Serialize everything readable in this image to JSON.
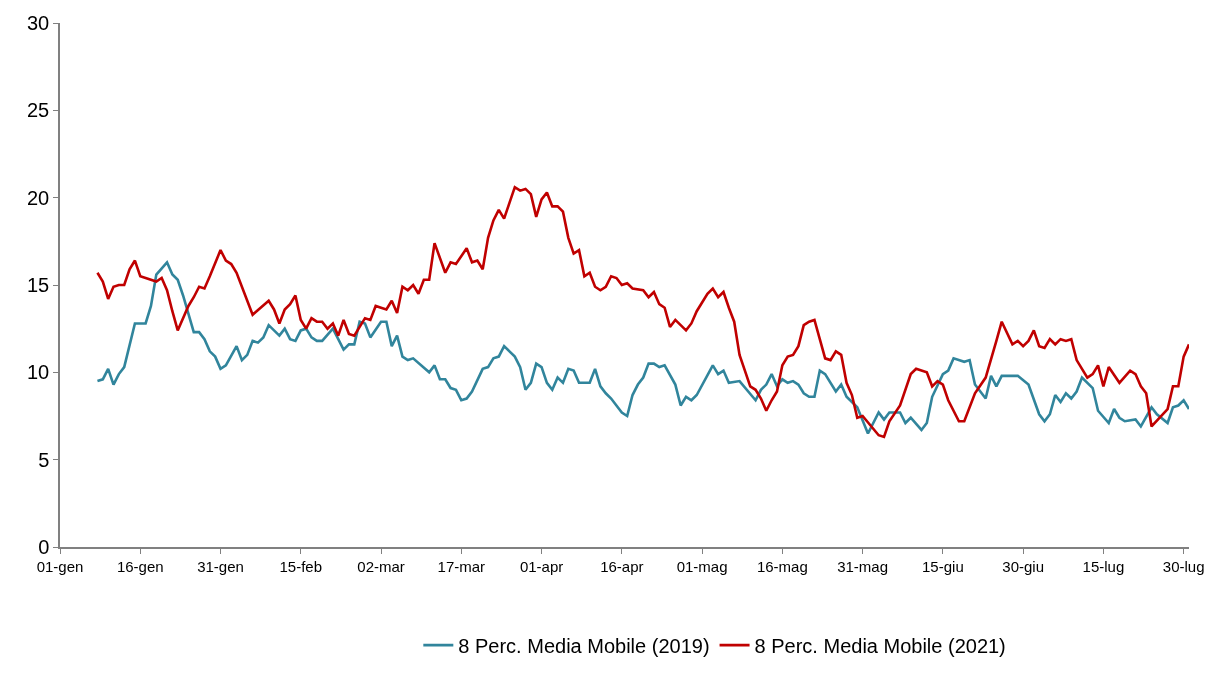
{
  "chart_data": {
    "type": "line",
    "xlim": [
      "--01-01",
      "--07-31"
    ],
    "ylim": [
      0,
      30
    ],
    "yticks": [
      0,
      5,
      10,
      15,
      20,
      25,
      30
    ],
    "xticks": [
      {
        "value": "--01-01",
        "label": "01-gen"
      },
      {
        "value": "--01-16",
        "label": "16-gen"
      },
      {
        "value": "--01-31",
        "label": "31-gen"
      },
      {
        "value": "--02-15",
        "label": "15-feb"
      },
      {
        "value": "--03-02",
        "label": "02-mar"
      },
      {
        "value": "--03-17",
        "label": "17-mar"
      },
      {
        "value": "--04-01",
        "label": "01-apr"
      },
      {
        "value": "--04-16",
        "label": "16-apr"
      },
      {
        "value": "--05-01",
        "label": "01-mag"
      },
      {
        "value": "--05-16",
        "label": "16-mag"
      },
      {
        "value": "--05-31",
        "label": "31-mag"
      },
      {
        "value": "--06-15",
        "label": "15-giu"
      },
      {
        "value": "--06-30",
        "label": "30-giu"
      },
      {
        "value": "--07-15",
        "label": "15-lug"
      },
      {
        "value": "--07-30",
        "label": "30-lug"
      }
    ],
    "grid": false,
    "legend": "bottom",
    "marker": "none",
    "line_style": "solid",
    "series": [
      {
        "name": "8 Perc. Media Mobile (2019)",
        "color": "#31859c",
        "x": [
          "--01-08",
          "--01-09",
          "--01-10",
          "--01-11",
          "--01-12",
          "--01-13",
          "--01-15",
          "--01-17",
          "--01-18",
          "--01-19",
          "--01-21",
          "--01-22",
          "--01-23",
          "--01-24",
          "--01-26",
          "--01-27",
          "--01-28",
          "--01-29",
          "--01-30",
          "--01-31",
          "--02-01",
          "--02-03",
          "--02-04",
          "--02-05",
          "--02-06",
          "--02-07",
          "--02-08",
          "--02-09",
          "--02-11",
          "--02-12",
          "--02-13",
          "--02-14",
          "--02-15",
          "--02-16",
          "--02-17",
          "--02-18",
          "--02-19",
          "--02-21",
          "--02-23",
          "--02-24",
          "--02-25",
          "--02-26",
          "--02-27",
          "--02-28",
          "--03-02",
          "--03-03",
          "--03-04",
          "--03-05",
          "--03-06",
          "--03-07",
          "--03-08",
          "--03-11",
          "--03-12",
          "--03-13",
          "--03-14",
          "--03-15",
          "--03-16",
          "--03-17",
          "--03-18",
          "--03-19",
          "--03-21",
          "--03-22",
          "--03-23",
          "--03-24",
          "--03-25",
          "--03-26",
          "--03-27",
          "--03-28",
          "--03-29",
          "--03-30",
          "--03-31",
          "--04-01",
          "--04-02",
          "--04-03",
          "--04-04",
          "--04-05",
          "--04-06",
          "--04-07",
          "--04-08",
          "--04-10",
          "--04-11",
          "--04-12",
          "--04-13",
          "--04-14",
          "--04-16",
          "--04-17",
          "--04-18",
          "--04-19",
          "--04-20",
          "--04-21",
          "--04-22",
          "--04-23",
          "--04-24",
          "--04-26",
          "--04-27",
          "--04-28",
          "--04-29",
          "--04-30",
          "--05-03",
          "--05-04",
          "--05-05",
          "--05-06",
          "--05-08",
          "--05-11",
          "--05-12",
          "--05-13",
          "--05-14",
          "--05-15",
          "--05-16",
          "--05-17",
          "--05-18",
          "--05-19",
          "--05-20",
          "--05-21",
          "--05-22",
          "--05-23",
          "--05-24",
          "--05-26",
          "--05-27",
          "--05-28",
          "--05-30",
          "--06-01",
          "--06-03",
          "--06-04",
          "--06-05",
          "--06-07",
          "--06-08",
          "--06-09",
          "--06-11",
          "--06-12",
          "--06-13",
          "--06-15",
          "--06-16",
          "--06-17",
          "--06-19",
          "--06-20",
          "--06-21",
          "--06-23",
          "--06-24",
          "--06-25",
          "--06-26",
          "--06-27",
          "--06-29",
          "--07-01",
          "--07-03",
          "--07-04",
          "--07-05",
          "--07-06",
          "--07-07",
          "--07-08",
          "--07-09",
          "--07-10",
          "--07-11",
          "--07-13",
          "--07-14",
          "--07-16",
          "--07-17",
          "--07-18",
          "--07-19",
          "--07-21",
          "--07-22",
          "--07-24",
          "--07-25",
          "--07-27",
          "--07-28",
          "--07-29",
          "--07-30",
          "--07-31"
        ],
        "values": [
          9.5,
          9.6,
          10.2,
          9.3,
          9.9,
          10.3,
          12.8,
          12.8,
          13.8,
          15.6,
          16.3,
          15.6,
          15.3,
          14.4,
          12.3,
          12.3,
          11.9,
          11.2,
          10.9,
          10.2,
          10.4,
          11.5,
          10.7,
          11.0,
          11.8,
          11.7,
          12.0,
          12.7,
          12.1,
          12.5,
          11.9,
          11.8,
          12.4,
          12.5,
          12.0,
          11.8,
          11.8,
          12.5,
          11.3,
          11.6,
          11.6,
          12.9,
          12.8,
          12.0,
          12.9,
          12.9,
          11.5,
          12.1,
          10.9,
          10.7,
          10.8,
          10.0,
          10.4,
          9.6,
          9.6,
          9.1,
          9.0,
          8.4,
          8.5,
          8.9,
          10.2,
          10.3,
          10.8,
          10.9,
          11.5,
          11.2,
          10.9,
          10.3,
          9.0,
          9.4,
          10.5,
          10.3,
          9.4,
          9.0,
          9.7,
          9.4,
          10.2,
          10.1,
          9.4,
          9.4,
          10.2,
          9.2,
          8.8,
          8.5,
          7.7,
          7.5,
          8.7,
          9.3,
          9.7,
          10.5,
          10.5,
          10.3,
          10.4,
          9.3,
          8.1,
          8.6,
          8.4,
          8.7,
          10.4,
          9.9,
          10.1,
          9.4,
          9.5,
          8.4,
          9.0,
          9.3,
          9.9,
          9.2,
          9.6,
          9.4,
          9.5,
          9.3,
          8.8,
          8.6,
          8.6,
          10.1,
          9.9,
          8.9,
          9.3,
          8.6,
          8.0,
          6.5,
          7.7,
          7.3,
          7.7,
          7.7,
          7.1,
          7.4,
          6.7,
          7.1,
          8.6,
          9.9,
          10.1,
          10.8,
          10.6,
          10.7,
          9.3,
          8.5,
          9.8,
          9.2,
          9.8,
          9.8,
          9.8,
          9.3,
          7.6,
          7.2,
          7.6,
          8.7,
          8.3,
          8.8,
          8.5,
          8.9,
          9.7,
          9.1,
          7.8,
          7.1,
          7.9,
          7.4,
          7.2,
          7.3,
          6.9,
          8.0,
          7.6,
          7.1,
          8.0,
          8.1,
          8.4,
          7.9
        ]
      },
      {
        "name": "8 Perc. Media Mobile (2021)",
        "color": "#c00000",
        "x": [
          "--01-08",
          "--01-09",
          "--01-10",
          "--01-11",
          "--01-12",
          "--01-13",
          "--01-14",
          "--01-15",
          "--01-16",
          "--01-19",
          "--01-20",
          "--01-21",
          "--01-22",
          "--01-23",
          "--01-25",
          "--01-26",
          "--01-27",
          "--01-28",
          "--01-29",
          "--01-31",
          "--02-01",
          "--02-02",
          "--02-03",
          "--02-06",
          "--02-09",
          "--02-10",
          "--02-11",
          "--02-12",
          "--02-13",
          "--02-14",
          "--02-15",
          "--02-16",
          "--02-17",
          "--02-18",
          "--02-19",
          "--02-20",
          "--02-21",
          "--02-22",
          "--02-23",
          "--02-24",
          "--02-25",
          "--02-27",
          "--02-28",
          "--03-01",
          "--03-02",
          "--03-03",
          "--03-04",
          "--03-05",
          "--03-06",
          "--03-07",
          "--03-08",
          "--03-09",
          "--03-10",
          "--03-11",
          "--03-12",
          "--03-14",
          "--03-15",
          "--03-16",
          "--03-18",
          "--03-19",
          "--03-20",
          "--03-21",
          "--03-22",
          "--03-23",
          "--03-24",
          "--03-25",
          "--03-26",
          "--03-27",
          "--03-28",
          "--03-29",
          "--03-30",
          "--03-31",
          "--04-01",
          "--04-02",
          "--04-03",
          "--04-04",
          "--04-05",
          "--04-06",
          "--04-07",
          "--04-08",
          "--04-09",
          "--04-10",
          "--04-11",
          "--04-12",
          "--04-13",
          "--04-14",
          "--04-15",
          "--04-16",
          "--04-17",
          "--04-18",
          "--04-20",
          "--04-21",
          "--04-22",
          "--04-23",
          "--04-24",
          "--04-25",
          "--04-26",
          "--04-27",
          "--04-28",
          "--04-29",
          "--04-30",
          "--05-02",
          "--05-03",
          "--05-04",
          "--05-05",
          "--05-06",
          "--05-07",
          "--05-08",
          "--05-09",
          "--05-10",
          "--05-11",
          "--05-12",
          "--05-13",
          "--05-14",
          "--05-15",
          "--05-16",
          "--05-17",
          "--05-18",
          "--05-19",
          "--05-20",
          "--05-21",
          "--05-22",
          "--05-23",
          "--05-24",
          "--05-25",
          "--05-26",
          "--05-27",
          "--05-28",
          "--05-29",
          "--05-30",
          "--05-31",
          "--06-03",
          "--06-04",
          "--06-05",
          "--06-07",
          "--06-09",
          "--06-10",
          "--06-12",
          "--06-13",
          "--06-14",
          "--06-15",
          "--06-16",
          "--06-18",
          "--06-19",
          "--06-21",
          "--06-23",
          "--06-25",
          "--06-26",
          "--06-28",
          "--06-29",
          "--06-30",
          "--07-01",
          "--07-02",
          "--07-03",
          "--07-04",
          "--07-05",
          "--07-06",
          "--07-07",
          "--07-08",
          "--07-09",
          "--07-10",
          "--07-12",
          "--07-13",
          "--07-14",
          "--07-15",
          "--07-16",
          "--07-18",
          "--07-20",
          "--07-21",
          "--07-22",
          "--07-23",
          "--07-24",
          "--07-27",
          "--07-28",
          "--07-29",
          "--07-30",
          "--07-31"
        ],
        "values": [
          15.7,
          15.2,
          14.2,
          14.9,
          15.0,
          15.0,
          15.9,
          16.4,
          15.5,
          15.2,
          15.4,
          14.7,
          13.5,
          12.4,
          13.8,
          14.3,
          14.9,
          14.8,
          15.5,
          17.0,
          16.4,
          16.2,
          15.7,
          13.3,
          14.1,
          13.6,
          12.8,
          13.6,
          13.9,
          14.4,
          13.0,
          12.5,
          13.1,
          12.9,
          12.9,
          12.5,
          12.8,
          12.1,
          13.0,
          12.2,
          12.1,
          13.1,
          13.0,
          13.8,
          13.7,
          13.6,
          14.1,
          13.4,
          14.9,
          14.7,
          15.0,
          14.5,
          15.3,
          15.3,
          17.4,
          15.7,
          16.3,
          16.2,
          17.1,
          16.3,
          16.4,
          15.9,
          17.7,
          18.7,
          19.3,
          18.8,
          19.7,
          20.6,
          20.4,
          20.5,
          20.2,
          18.9,
          19.9,
          20.3,
          19.5,
          19.5,
          19.2,
          17.7,
          16.8,
          17.0,
          15.5,
          15.7,
          14.9,
          14.7,
          14.9,
          15.5,
          15.4,
          15.0,
          15.1,
          14.8,
          14.7,
          14.3,
          14.6,
          13.9,
          13.7,
          12.6,
          13.0,
          12.7,
          12.4,
          12.8,
          13.5,
          14.5,
          14.8,
          14.3,
          14.6,
          13.7,
          12.9,
          11.0,
          10.1,
          9.2,
          9.0,
          8.5,
          7.8,
          8.4,
          8.9,
          10.4,
          10.9,
          11.0,
          11.5,
          12.7,
          12.9,
          13.0,
          11.9,
          10.8,
          10.7,
          11.2,
          11.0,
          9.4,
          8.7,
          7.4,
          7.5,
          6.4,
          6.3,
          7.2,
          8.1,
          9.9,
          10.2,
          10.0,
          9.2,
          9.5,
          9.3,
          8.4,
          7.2,
          7.2,
          8.8,
          9.7,
          11.8,
          12.9,
          11.6,
          11.8,
          11.5,
          11.8,
          12.4,
          11.5,
          11.4,
          11.9,
          11.6,
          11.9,
          11.8,
          11.9,
          10.7,
          9.7,
          9.9,
          10.4,
          9.2,
          10.3,
          9.4,
          10.1,
          9.9,
          9.2,
          8.8,
          6.9,
          7.9,
          9.2,
          9.2,
          10.9,
          11.6
        ]
      }
    ]
  }
}
